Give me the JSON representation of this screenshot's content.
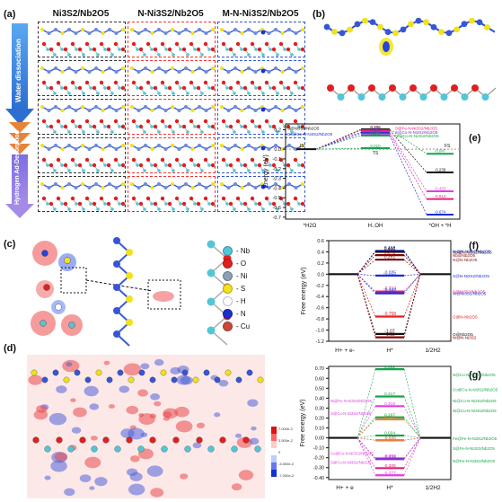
{
  "panel_a": {
    "label": "(a)",
    "columns": [
      "Ni3S2/Nb2O5",
      "N-Ni3S2/Nb2O5",
      "M-N-Ni3S2/Nb2O5"
    ],
    "arrow_top": "Water dissociation",
    "arrow_bottom": "Hydrogen Ad-Desorption"
  },
  "panel_b": {
    "label": "(b)"
  },
  "panel_c": {
    "label": "(c)",
    "legend": [
      {
        "text": "- Nb",
        "color": "#52c6d6"
      },
      {
        "text": "- O",
        "color": "#e02020"
      },
      {
        "text": "- Ni",
        "color": "#8aa0b8"
      },
      {
        "text": "- S",
        "color": "#f2e21a"
      },
      {
        "text": "- H",
        "color": "#ffffff"
      },
      {
        "text": "- N",
        "color": "#1c2fcf"
      },
      {
        "text": "- Cu",
        "color": "#c94a3a"
      }
    ]
  },
  "panel_d": {
    "label": "(d)",
    "colorbar": [
      "7.000e-2",
      "3.500e-2",
      "0",
      "-3.500e-2",
      "-7.000e-2"
    ]
  },
  "panel_e": {
    "label": "(e)",
    "ylabel": "Energy (eV)",
    "x_labels": [
      "*H2O",
      "H..OH",
      "*OH + *H"
    ],
    "y_ticks": [
      "0.2",
      "0.0",
      "-0.1",
      "-0.2",
      "-0.3",
      "-0.4",
      "-0.5",
      "-0.6",
      "-0.7"
    ],
    "ts_label": "TS",
    "is_label": "IS",
    "fs_label": "FS",
    "values": [
      "0.205",
      "0.195",
      "0.175",
      "0.161",
      "0.140",
      "0.010",
      "-0.047",
      "-0.239",
      "-0.433",
      "-0.513",
      "-0.674"
    ],
    "annotations": [
      "S@Ni3S2/Nb2O5",
      "Co@Co-N-Ni3S2/Nb2O5",
      "Ni@Co-N-Ni3S2/Nb2O5",
      "S@Fe-N-Ni3S2/Nb2O5",
      "S@Cu-N-Ni3S2/Nb2O5"
    ]
  },
  "panel_f": {
    "label": "(f)",
    "ylabel": "Free energy (eV)",
    "x_labels": [
      "H+ + e-",
      "H*",
      "1/2H2"
    ],
    "y_ticks": [
      "0.6",
      "0.4",
      "0.2",
      "0.0",
      "-0.2",
      "-0.4",
      "-0.6",
      "-0.8",
      "-1.0",
      "-1.2"
    ],
    "values": [
      "0.418",
      "0.400",
      "0.341",
      "0.261",
      "-0.025",
      "-0.310",
      "-0.342",
      "-0.758",
      "-1.07",
      "-1.13"
    ],
    "annotations": [
      "Ni@N-Ni3S2/Nb2O5",
      "Nb@N-Ni3S2/Nb2O5",
      "Nb@Nb2O5",
      "N@N-Nb2O5",
      "S@N-Ni3S2/Nb2O5",
      "S@Ni3S2/Nb2O5",
      "Ni@Ni3S2/Nb2O5",
      "O@N-Nb2O5",
      "O@Nb2O5",
      "Ni@N-Ni3S2"
    ]
  },
  "panel_g": {
    "label": "(g)",
    "ylabel": "Free energy (eV)",
    "x_labels": [
      "H+ + e",
      "H*",
      "1/2H2"
    ],
    "y_ticks": [
      "0.70",
      "0.60",
      "0.50",
      "0.40",
      "0.30",
      "0.20",
      "0.10",
      "0.00",
      "-0.10",
      "-0.20",
      "-0.30",
      "-0.40"
    ],
    "values": [
      "0.692",
      "0.417",
      "0.319",
      "0.207",
      "0.186",
      "0.024",
      "-0.025",
      "-0.023",
      "-0.206",
      "-0.214",
      "-0.305",
      "-0.377"
    ],
    "annotations": [
      "N@Co-N-Ni3S2/Nb2O5",
      "Co@Cu-N-Ni3S2/Nb2O5",
      "Ni@Fe-N-Ni3S2/Nb2O5",
      "Ni@Co-N-Ni3S2/Nb2O5",
      "Fe@Fe-N-Ni3S2/Nb2O5",
      "Ni@Cu-N-Ni3S2/Nb2O5",
      "S@Cu-N-Ni3S2/Nb2O5",
      "Cu@Cu-N-Ni3S2/Nb2O5",
      "S@Fe-N-Ni3S2/Nb2O5",
      "S@Co-N-Ni3S2/Nb2O5",
      "N@Fe-N-Ni3S2/Nb2O5"
    ]
  }
}
